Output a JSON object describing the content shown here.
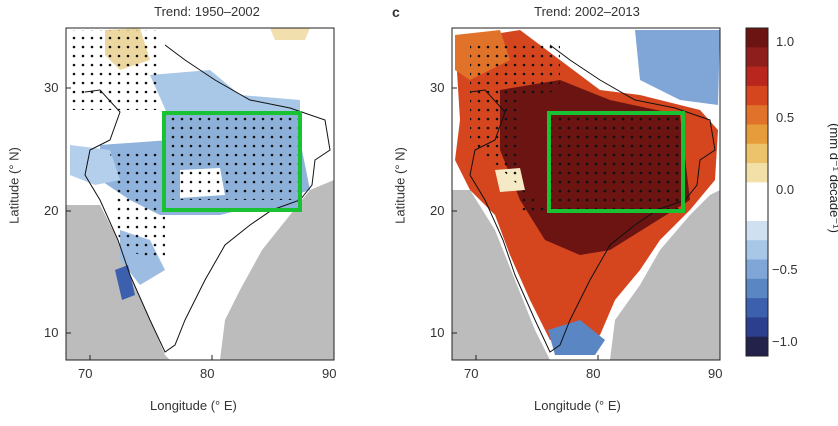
{
  "panels": [
    {
      "title": "Trend: 1950–2002",
      "label": ""
    },
    {
      "title": "Trend: 2002–2013",
      "label": "c"
    }
  ],
  "axes": {
    "xlabel": "Longitude (° E)",
    "ylabel": "Latitude (° N)",
    "xticks": [
      "70",
      "80",
      "90"
    ],
    "yticks": [
      "30",
      "20",
      "10"
    ]
  },
  "colorbar": {
    "label": "(mm d⁻¹ decade⁻¹)",
    "ticks": [
      "1.0",
      "0.5",
      "0.0",
      "−0.5",
      "−1.0"
    ],
    "range": [
      -1.1,
      1.1
    ],
    "colors": [
      "#22224a",
      "#2c3f8f",
      "#3c5fae",
      "#5a86c4",
      "#7fa6d6",
      "#a8c6e6",
      "#cfe0f1",
      "#ffffff",
      "#ffffff",
      "#f3e0a8",
      "#ecc36a",
      "#e69c3b",
      "#e0722a",
      "#d5461f",
      "#b8261d",
      "#8e1e1b",
      "#6b1412"
    ]
  },
  "chart_data": {
    "type": "heatmap",
    "xlim": [
      68,
      90
    ],
    "ylim": [
      8,
      35
    ],
    "box": {
      "lon": [
        76,
        87
      ],
      "lat": [
        20,
        28
      ]
    },
    "panels": [
      {
        "period": "1950–2002",
        "box_mean_trend": -0.3,
        "box_color": "#19c232"
      },
      {
        "period": "2002–2013",
        "box_mean_trend": 1.0,
        "box_color": "#19c232"
      }
    ]
  }
}
